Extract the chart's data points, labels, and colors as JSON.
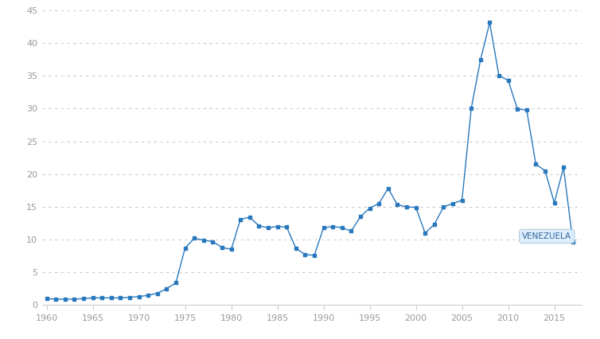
{
  "years": [
    1960,
    1961,
    1962,
    1963,
    1964,
    1965,
    1966,
    1967,
    1968,
    1969,
    1970,
    1971,
    1972,
    1973,
    1974,
    1975,
    1976,
    1977,
    1978,
    1979,
    1980,
    1981,
    1982,
    1983,
    1984,
    1985,
    1986,
    1987,
    1988,
    1989,
    1990,
    1991,
    1992,
    1993,
    1994,
    1995,
    1996,
    1997,
    1998,
    1999,
    2000,
    2001,
    2002,
    2003,
    2004,
    2005,
    2006,
    2007,
    2008,
    2009,
    2010,
    2011,
    2012,
    2013,
    2014,
    2015,
    2016,
    2017
  ],
  "values": [
    1.0,
    0.9,
    0.9,
    0.9,
    1.0,
    1.1,
    1.1,
    1.1,
    1.1,
    1.2,
    1.3,
    1.5,
    1.8,
    2.5,
    3.4,
    8.7,
    10.2,
    9.9,
    9.7,
    8.8,
    8.5,
    13.1,
    13.4,
    12.1,
    11.8,
    12.0,
    11.9,
    8.7,
    7.7,
    7.6,
    11.8,
    12.0,
    11.8,
    11.3,
    13.5,
    14.8,
    15.5,
    17.8,
    15.3,
    15.0,
    14.9,
    11.0,
    12.3,
    15.0,
    15.5,
    16.0,
    30.0,
    37.4,
    43.1,
    35.0,
    34.3,
    29.9,
    29.8,
    21.5,
    20.5,
    15.6,
    21.0,
    9.7
  ],
  "line_color": "#2878bd",
  "marker_color": "#2878bd",
  "background_color": "#ffffff",
  "grid_color": "#cccccc",
  "label_color": "#999999",
  "tick_color": "#cccccc",
  "label_text": "VENEZUELA",
  "label_box_facecolor": "#ddeeff",
  "label_box_edgecolor": "#aaccdd",
  "ylim": [
    0,
    45
  ],
  "yticks": [
    0,
    5,
    10,
    15,
    20,
    25,
    30,
    35,
    40,
    45
  ],
  "xlim": [
    1959.5,
    2018
  ],
  "xticks": [
    1960,
    1965,
    1970,
    1975,
    1980,
    1985,
    1990,
    1995,
    2000,
    2005,
    2010,
    2015
  ]
}
